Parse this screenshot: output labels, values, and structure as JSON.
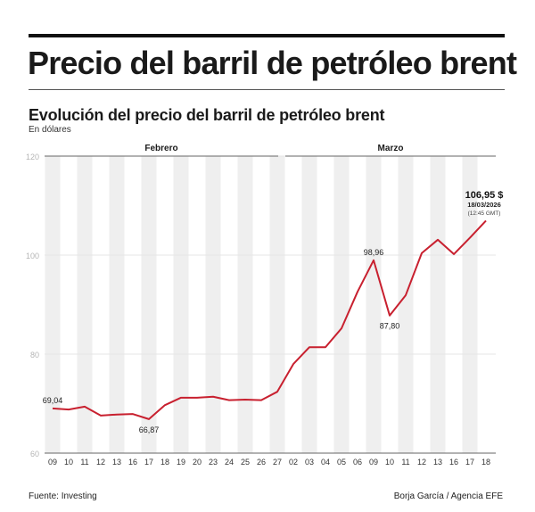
{
  "header": {
    "title": "Precio del barril de petróleo brent",
    "subtitle": "Evolución del precio del barril de petróleo brent",
    "unit": "En dólares"
  },
  "footer": {
    "source": "Fuente: Investing",
    "credit": "Borja García / Agencia EFE"
  },
  "colors": {
    "line": "#c8202f",
    "stripe": "#efefef"
  },
  "chart_data": {
    "type": "line",
    "ylim": [
      60,
      120
    ],
    "yticks": [
      60,
      80,
      100,
      120
    ],
    "grid": true,
    "months": [
      {
        "label": "Febrero",
        "from": 0,
        "to": 14
      },
      {
        "label": "Marzo",
        "from": 15,
        "to": 27
      }
    ],
    "categories": [
      "09",
      "10",
      "11",
      "12",
      "13",
      "16",
      "17",
      "18",
      "19",
      "20",
      "23",
      "24",
      "25",
      "26",
      "27",
      "02",
      "03",
      "04",
      "05",
      "06",
      "09",
      "10",
      "11",
      "12",
      "13",
      "16",
      "17",
      "18"
    ],
    "values": [
      69.04,
      68.8,
      69.4,
      67.6,
      67.8,
      67.9,
      66.87,
      69.7,
      71.2,
      71.2,
      71.4,
      70.7,
      70.8,
      70.7,
      72.4,
      78.0,
      81.4,
      81.4,
      85.2,
      92.6,
      98.96,
      87.8,
      91.9,
      100.4,
      103.1,
      100.2,
      103.5,
      106.95
    ],
    "annotations": [
      {
        "index": 0,
        "text": "69,04",
        "pos": "above"
      },
      {
        "index": 6,
        "text": "66,87",
        "pos": "below"
      },
      {
        "index": 20,
        "text": "98,96",
        "pos": "above"
      },
      {
        "index": 21,
        "text": "87,80",
        "pos": "below"
      }
    ],
    "last": {
      "value": "106,95 $",
      "date": "18/03/2026",
      "time": "(12:45 GMT)"
    }
  }
}
